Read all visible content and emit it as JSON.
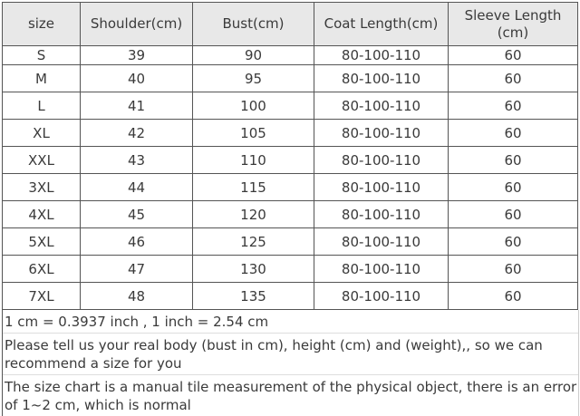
{
  "headers": [
    "size",
    "Shoulder(cm)",
    "Bust(cm)",
    "Coat Length(cm)",
    "Sleeve Length (cm)"
  ],
  "rows": [
    [
      "S",
      "39",
      "90",
      "80-100-110",
      "60"
    ],
    [
      "M",
      "40",
      "95",
      "80-100-110",
      "60"
    ],
    [
      "L",
      "41",
      "100",
      "80-100-110",
      "60"
    ],
    [
      "XL",
      "42",
      "105",
      "80-100-110",
      "60"
    ],
    [
      "XXL",
      "43",
      "110",
      "80-100-110",
      "60"
    ],
    [
      "3XL",
      "44",
      "115",
      "80-100-110",
      "60"
    ],
    [
      "4XL",
      "45",
      "120",
      "80-100-110",
      "60"
    ],
    [
      "5XL",
      "46",
      "125",
      "80-100-110",
      "60"
    ],
    [
      "6XL",
      "47",
      "130",
      "80-100-110",
      "60"
    ],
    [
      "7XL",
      "48",
      "135",
      "80-100-110",
      "60"
    ]
  ],
  "notes": [
    "1 cm = 0.3937 inch , 1 inch = 2.54 cm",
    "Please tell us your real body (bust in cm), height (cm) and (weight),, so we can recommend a size for you",
    "The size chart is a manual tile measurement of the physical object, there is an error of 1~2 cm, which is normal"
  ]
}
